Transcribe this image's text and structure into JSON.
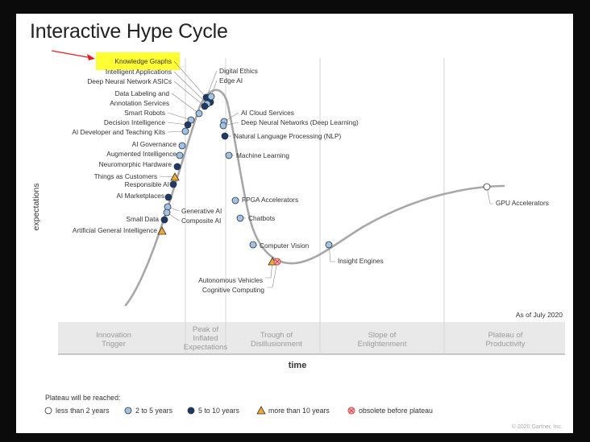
{
  "title": "Interactive Hype Cycle",
  "y_axis_label": "expectations",
  "x_axis_label": "time",
  "as_of": "As of July 2020",
  "copyright": "© 2020 Gartner, Inc.",
  "phases": [
    "Innovation Trigger",
    "Peak of Inflated Expectations",
    "Trough of Disillusionment",
    "Slope of Enlightenment",
    "Plateau of Productivity"
  ],
  "legend": {
    "title": "Plateau will be reached:",
    "items": [
      {
        "key": "lt2",
        "label": "less than 2 years"
      },
      {
        "key": "2to5",
        "label": "2 to 5 years"
      },
      {
        "key": "5to10",
        "label": "5 to 10 years"
      },
      {
        "key": "gt10",
        "label": "more than 10 years"
      },
      {
        "key": "obsolete",
        "label": "obsolete before plateau"
      }
    ]
  },
  "colors": {
    "lt2": "#ffffff",
    "2to5": "#9ec3e6",
    "5to10": "#1b3a6b",
    "gt10": "#f0a830",
    "obsolete": "#f5b5b5",
    "curve": "#a8a8a8",
    "highlight": "#ffff33",
    "arrow": "#e02020"
  },
  "chart_data": {
    "type": "scatter",
    "title": "Interactive Hype Cycle",
    "xlabel": "time",
    "ylabel": "expectations",
    "technologies": [
      {
        "name": "Knowledge Graphs",
        "category": "5to10",
        "highlighted": true
      },
      {
        "name": "Intelligent Applications",
        "category": "2to5"
      },
      {
        "name": "Deep Neural Network ASICs",
        "category": "5to10"
      },
      {
        "name": "Data Labeling and Annotation Services",
        "category": "2to5"
      },
      {
        "name": "Smart Robots",
        "category": "2to5"
      },
      {
        "name": "Decision Intelligence",
        "category": "5to10"
      },
      {
        "name": "AI Developer and Teaching Kits",
        "category": "2to5"
      },
      {
        "name": "AI Governance",
        "category": "2to5"
      },
      {
        "name": "Augmented Intelligence",
        "category": "2to5"
      },
      {
        "name": "Neuromorphic Hardware",
        "category": "5to10"
      },
      {
        "name": "Things as Customers",
        "category": "gt10"
      },
      {
        "name": "Responsible AI",
        "category": "5to10"
      },
      {
        "name": "AI Marketplaces",
        "category": "5to10"
      },
      {
        "name": "Generative AI",
        "category": "2to5"
      },
      {
        "name": "Composite AI",
        "category": "2to5"
      },
      {
        "name": "Small Data",
        "category": "5to10"
      },
      {
        "name": "Artificial General Intelligence",
        "category": "gt10"
      },
      {
        "name": "Digital Ethics",
        "category": "5to10"
      },
      {
        "name": "Edge AI",
        "category": "2to5"
      },
      {
        "name": "AI Cloud Services",
        "category": "2to5"
      },
      {
        "name": "Deep Neural Networks (Deep Learning)",
        "category": "2to5"
      },
      {
        "name": "Natural Language Processing (NLP)",
        "category": "5to10"
      },
      {
        "name": "Machine Learning",
        "category": "2to5"
      },
      {
        "name": "FPGA Accelerators",
        "category": "2to5"
      },
      {
        "name": "Chatbots",
        "category": "2to5"
      },
      {
        "name": "Computer Vision",
        "category": "2to5"
      },
      {
        "name": "Autonomous Vehicles",
        "category": "gt10"
      },
      {
        "name": "Cognitive Computing",
        "category": "obsolete"
      },
      {
        "name": "Insight Engines",
        "category": "2to5"
      },
      {
        "name": "GPU Accelerators",
        "category": "lt2"
      }
    ]
  }
}
